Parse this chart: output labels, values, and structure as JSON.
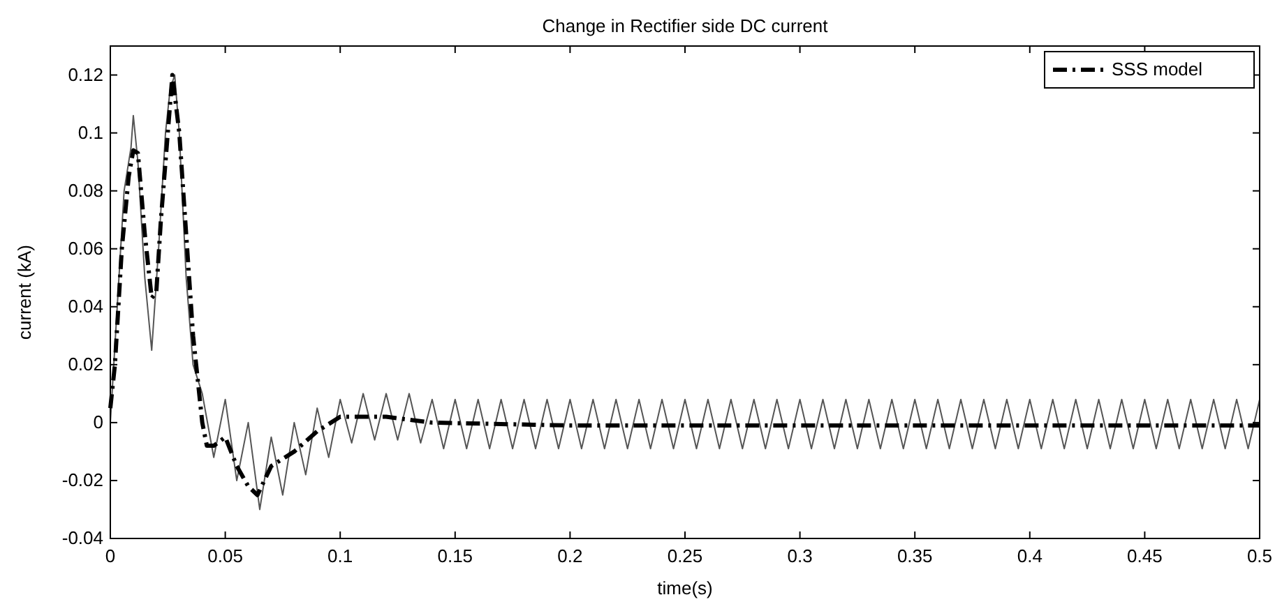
{
  "chart_data": {
    "type": "line",
    "title": "Change in Rectifier side DC current",
    "xlabel": "time(s)",
    "ylabel": "current (kA)",
    "xlim": [
      0,
      0.5
    ],
    "ylim": [
      -0.04,
      0.13
    ],
    "xticks": [
      0,
      0.05,
      0.1,
      0.15,
      0.2,
      0.25,
      0.3,
      0.35,
      0.4,
      0.45,
      0.5
    ],
    "yticks": [
      -0.04,
      -0.02,
      0,
      0.02,
      0.04,
      0.06,
      0.08,
      0.1,
      0.12
    ],
    "grid": false,
    "legend": "top right",
    "series": [
      {
        "color": "#555555",
        "line_style": "solid",
        "x": [
          0,
          0.003,
          0.006,
          0.009,
          0.01,
          0.012,
          0.015,
          0.018,
          0.021,
          0.024,
          0.026,
          0.028,
          0.03,
          0.033,
          0.036,
          0.04,
          0.045,
          0.05,
          0.055,
          0.06,
          0.065,
          0.07,
          0.075,
          0.08,
          0.085,
          0.09,
          0.095,
          0.1,
          0.105,
          0.11,
          0.115,
          0.12,
          0.125,
          0.13,
          0.135,
          0.14,
          0.145,
          0.15,
          0.155,
          0.16,
          0.165,
          0.17,
          0.175,
          0.18,
          0.185,
          0.19,
          0.195,
          0.2,
          0.205,
          0.21,
          0.215,
          0.22,
          0.225,
          0.23,
          0.235,
          0.24,
          0.245,
          0.25,
          0.255,
          0.26,
          0.265,
          0.27,
          0.275,
          0.28,
          0.285,
          0.29,
          0.295,
          0.3,
          0.305,
          0.31,
          0.315,
          0.32,
          0.325,
          0.33,
          0.335,
          0.34,
          0.345,
          0.35,
          0.355,
          0.36,
          0.365,
          0.37,
          0.375,
          0.38,
          0.385,
          0.39,
          0.395,
          0.4,
          0.405,
          0.41,
          0.415,
          0.42,
          0.425,
          0.43,
          0.435,
          0.44,
          0.445,
          0.45,
          0.455,
          0.46,
          0.465,
          0.47,
          0.475,
          0.48,
          0.485,
          0.49,
          0.495,
          0.5
        ],
        "values": [
          0,
          0.04,
          0.08,
          0.095,
          0.106,
          0.09,
          0.05,
          0.025,
          0.06,
          0.1,
          0.115,
          0.12,
          0.1,
          0.05,
          0.02,
          0.01,
          -0.012,
          0.008,
          -0.02,
          0,
          -0.03,
          -0.005,
          -0.025,
          0,
          -0.018,
          0.005,
          -0.012,
          0.008,
          -0.007,
          0.01,
          -0.006,
          0.01,
          -0.006,
          0.01,
          -0.007,
          0.008,
          -0.009,
          0.008,
          -0.009,
          0.008,
          -0.009,
          0.008,
          -0.009,
          0.008,
          -0.009,
          0.008,
          -0.009,
          0.008,
          -0.009,
          0.008,
          -0.009,
          0.008,
          -0.009,
          0.008,
          -0.009,
          0.008,
          -0.009,
          0.008,
          -0.009,
          0.008,
          -0.009,
          0.008,
          -0.009,
          0.008,
          -0.009,
          0.008,
          -0.009,
          0.008,
          -0.009,
          0.008,
          -0.009,
          0.008,
          -0.009,
          0.008,
          -0.009,
          0.008,
          -0.009,
          0.008,
          -0.009,
          0.008,
          -0.009,
          0.008,
          -0.009,
          0.008,
          -0.009,
          0.008,
          -0.009,
          0.008,
          -0.009,
          0.008,
          -0.009,
          0.008,
          -0.009,
          0.008,
          -0.009,
          0.008,
          -0.009,
          0.008,
          -0.009,
          0.008,
          -0.009,
          0.008,
          -0.009,
          0.008,
          -0.009,
          0.008,
          -0.009,
          0.008
        ]
      },
      {
        "name": "SSS model",
        "color": "#000000",
        "line_style": "dashed",
        "x": [
          0,
          0.002,
          0.005,
          0.008,
          0.01,
          0.012,
          0.015,
          0.018,
          0.02,
          0.022,
          0.025,
          0.027,
          0.03,
          0.033,
          0.036,
          0.04,
          0.042,
          0.045,
          0.05,
          0.055,
          0.06,
          0.064,
          0.07,
          0.08,
          0.09,
          0.1,
          0.12,
          0.14,
          0.2,
          0.5
        ],
        "values": [
          0.005,
          0.02,
          0.06,
          0.085,
          0.094,
          0.093,
          0.065,
          0.043,
          0.045,
          0.07,
          0.1,
          0.12,
          0.1,
          0.065,
          0.03,
          0,
          -0.008,
          -0.008,
          -0.005,
          -0.015,
          -0.022,
          -0.025,
          -0.015,
          -0.01,
          -0.003,
          0.002,
          0.002,
          0,
          -0.001,
          -0.001
        ]
      }
    ]
  }
}
